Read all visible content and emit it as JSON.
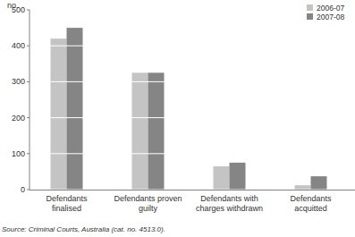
{
  "chart_data": {
    "type": "bar",
    "ylabel": "no.",
    "categories": [
      "Defendants finalised",
      "Defendants proven guilty",
      "Defendants with charges withdrawn",
      "Defendants acquitted"
    ],
    "series": [
      {
        "name": "2006-07",
        "color": "#c4c4c4",
        "values": [
          420,
          325,
          65,
          12
        ]
      },
      {
        "name": "2007-08",
        "color": "#858585",
        "values": [
          450,
          325,
          75,
          37
        ]
      }
    ],
    "ylim": [
      0,
      500
    ],
    "yticks": [
      0,
      100,
      200,
      300,
      400,
      500
    ],
    "grid": true,
    "legend": "top-right",
    "annotations": [
      "Source: Criminal Courts, Australia (cat. no. 4513.0)."
    ]
  }
}
